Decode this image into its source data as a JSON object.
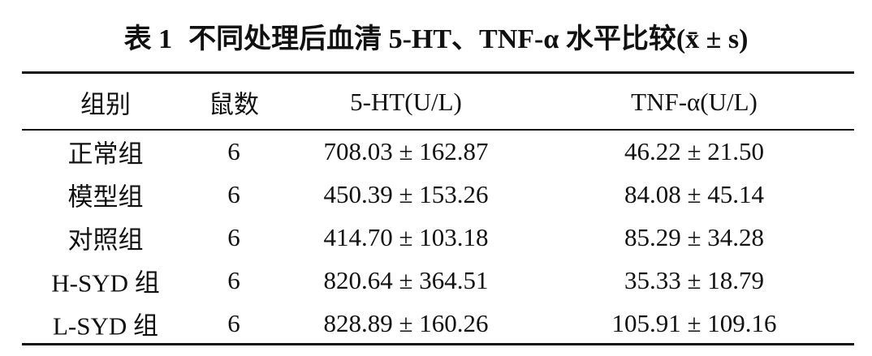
{
  "title": {
    "label": "表 1",
    "text": "不同处理后血清 5-HT、TNF-α 水平比较(x̄ ± s)"
  },
  "table": {
    "header": [
      "组别",
      "鼠数",
      "5-HT(U/L)",
      "TNF-α(U/L)"
    ],
    "rows": [
      [
        "正常组",
        "6",
        "708.03 ± 162.87",
        "46.22 ± 21.50"
      ],
      [
        "模型组",
        "6",
        "450.39 ± 153.26",
        "84.08 ± 45.14"
      ],
      [
        "对照组",
        "6",
        "414.70 ± 103.18",
        "85.29 ± 34.28"
      ],
      [
        "H-SYD 组",
        "6",
        "820.64 ± 364.51",
        "35.33 ± 18.79"
      ],
      [
        "L-SYD 组",
        "6",
        "828.89 ± 160.26",
        "105.91 ± 109.16"
      ]
    ]
  }
}
